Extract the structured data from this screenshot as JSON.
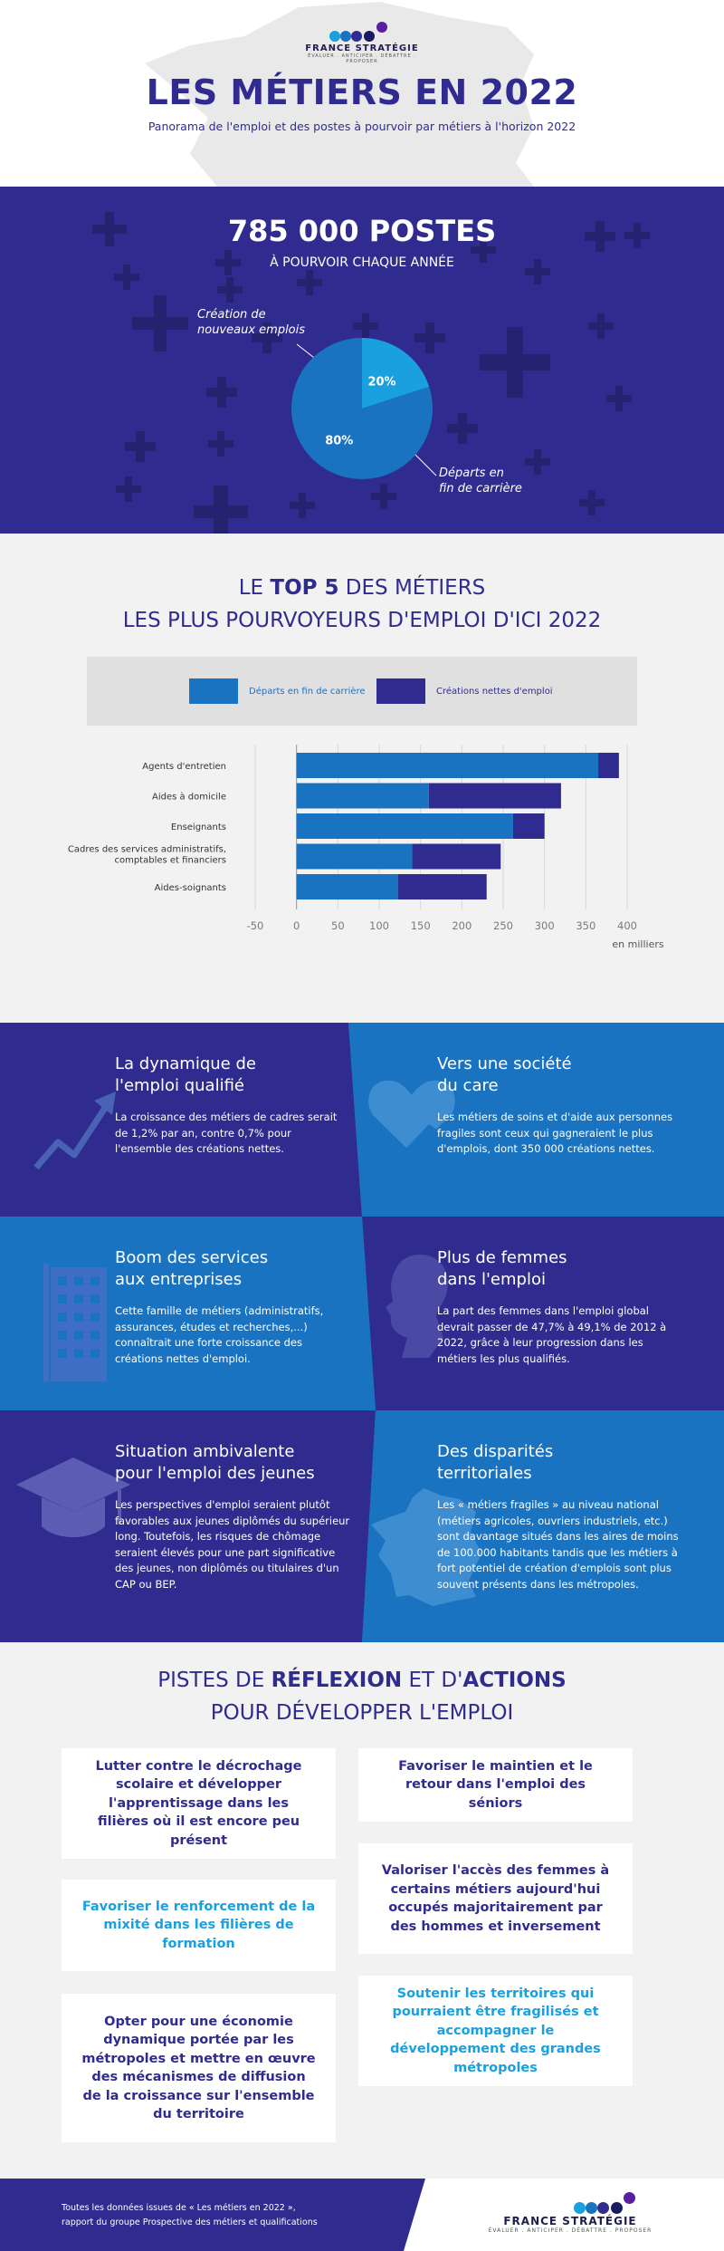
{
  "header": {
    "logo": {
      "name": "FRANCE STRATÉGIE",
      "tagline": "ÉVALUER . ANTICIPER . DÉBATTRE . PROPOSER"
    },
    "title": "LES MÉTIERS EN 2022",
    "subtitle": "Panorama de l'emploi et des postes à pourvoir par métiers à l'horizon 2022"
  },
  "stats": {
    "headline": "785 000 POSTES",
    "subline": "À POURVOIR CHAQUE ANNÉE",
    "pie": [
      {
        "label_line1": "Création de",
        "label_line2": "nouveaux emplois",
        "percent_label": "20%",
        "value": 20,
        "color": "#1aa0df"
      },
      {
        "label_line1": "Départs en",
        "label_line2": "fin de carrière",
        "percent_label": "80%",
        "value": 80,
        "color": "#1a73c1"
      }
    ]
  },
  "top5": {
    "title_pre": "LE ",
    "title_bold": "TOP 5",
    "title_post": " DES MÉTIERS",
    "title_line2": "LES PLUS POURVOYEURS D'EMPLOI D'ICI 2022",
    "legend": [
      {
        "label": "Départs en fin de carrière",
        "color": "#1a73c1"
      },
      {
        "label": "Créations nettes d'emploi",
        "color": "#302c8f"
      }
    ]
  },
  "chart_data": {
    "type": "bar",
    "orientation": "horizontal",
    "stacked": true,
    "categories": [
      "Agents d'entretien",
      "Aides à domicile",
      "Enseignants",
      "Cadres des services administratifs, comptables et financiers",
      "Aides-soignants"
    ],
    "category_lines": [
      [
        "Agents d'entretien"
      ],
      [
        "Aides à domicile"
      ],
      [
        "Enseignants"
      ],
      [
        "Cadres des services administratifs,",
        "comptables et financiers"
      ],
      [
        "Aides-soignants"
      ]
    ],
    "series": [
      {
        "name": "Départs en fin de carrière",
        "values": [
          365,
          160,
          262,
          140,
          123
        ],
        "color": "#1a73c1"
      },
      {
        "name": "Créations nettes d'emploi",
        "values": [
          25,
          160,
          38,
          107,
          107
        ],
        "color": "#302c8f"
      }
    ],
    "xlim": [
      -50,
      400
    ],
    "xticks": [
      -50,
      0,
      50,
      100,
      150,
      200,
      250,
      300,
      350,
      400
    ],
    "xlabel": "en milliers",
    "grid": true
  },
  "info": {
    "blocks": [
      {
        "title_l1": "La dynamique de",
        "title_l2": "l'emploi qualifié",
        "text": "La croissance des métiers de cadres serait de 1,2% par an, contre 0,7% pour l'ensemble des créations nettes.",
        "icon": "trend-arrow-icon"
      },
      {
        "title_l1": "Vers une société",
        "title_l2": "du care",
        "text": "Les métiers de soins et d'aide aux personnes fragiles sont ceux qui gagneraient le plus d'emplois, dont 350 000 créations nettes.",
        "icon": "heart-hand-icon"
      },
      {
        "title_l1": "Boom des services",
        "title_l2": "aux entreprises",
        "text": "Cette famille de métiers (administratifs, assurances, études et recherches,...) connaîtrait une forte croissance des créations nettes d'emploi.",
        "icon": "office-building-icon"
      },
      {
        "title_l1": "Plus de femmes",
        "title_l2": "dans l'emploi",
        "text": "La part des femmes dans l'emploi global devrait passer de 47,7% à 49,1% de 2012 à 2022, grâce à leur progression dans les métiers les plus qualifiés.",
        "icon": "woman-profile-icon"
      },
      {
        "title_l1": "Situation ambivalente",
        "title_l2": "pour l'emploi des jeunes",
        "text": "Les perspectives d'emploi seraient plutôt favorables aux jeunes diplômés du supérieur long. Toutefois, les risques de chômage seraient élevés pour une part significative des jeunes, non diplômés ou titulaires d'un CAP ou BEP.",
        "icon": "graduation-cap-icon"
      },
      {
        "title_l1": "Des disparités",
        "title_l2": "territoriales",
        "text": "Les « métiers fragiles » au niveau national (métiers agricoles, ouvriers industriels, etc.) sont davantage situés dans les aires de moins de 100.000 habitants tandis que les métiers à fort potentiel de création d'emplois sont plus souvent présents dans les métropoles.",
        "icon": "france-map-icon"
      }
    ]
  },
  "pistes": {
    "title_l1_a": "PISTES DE ",
    "title_l1_b": "RÉFLEXION",
    "title_l1_c": " ET D'",
    "title_l1_d": "ACTIONS",
    "title_l2": "POUR DÉVELOPPER L'EMPLOI",
    "cards": [
      "Lutter contre le décrochage scolaire et développer l'apprentissage dans les filières où il est encore peu présent",
      "Favoriser le maintien et le retour dans l'emploi des séniors",
      "Favoriser le renforcement de la mixité dans les filières de formation",
      "Valoriser l'accès des femmes à certains métiers aujourd'hui occupés majoritairement par des hommes et inversement",
      "Opter pour une économie dynamique portée par les métropoles et mettre en œuvre des mécanismes de diffusion de la croissance sur l'ensemble du territoire",
      "Soutenir les territoires qui pourraient être fragilisés et accompagner le développement des grandes métropoles"
    ]
  },
  "footer": {
    "note_l1": "Toutes les données issues de « Les métiers en 2022 »,",
    "note_l2": "rapport du groupe Prospective des métiers et qualifications",
    "logo": {
      "name": "FRANCE STRATÉGIE",
      "tagline": "ÉVALUER . ANTICIPER . DÉBATTRE . PROPOSER"
    }
  },
  "colors": {
    "navy": "#302c8f",
    "blue": "#1a73c1",
    "light_blue": "#1aa0df",
    "purple": "#5b1ea0",
    "grey_bg": "#f2f2f2"
  }
}
